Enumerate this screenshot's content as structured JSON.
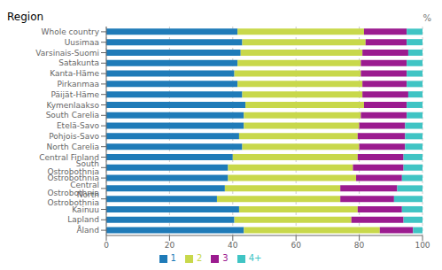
{
  "chart_data": {
    "type": "bar",
    "orientation": "horizontal",
    "stacked": true,
    "title": "Region",
    "xlabel": "%",
    "categories": [
      "Whole country",
      "Uusimaa",
      "Varsinais-Suomi",
      "Satakunta",
      "Kanta-Häme",
      "Pirkanmaa",
      "Päijät-Häme",
      "Kymenlaakso",
      "South Carelia",
      "Etelä-Savo",
      "Pohjois-Savo",
      "North Carelia",
      "Central Finland",
      "South Ostrobothnia",
      "Ostrobothnia",
      "Central Ostrobothnia",
      "North Ostrobothnia",
      "Kainuu",
      "Lapland",
      "Åland"
    ],
    "series": [
      {
        "name": "1",
        "color": "#1F7BB8",
        "values": [
          41.5,
          43.0,
          42.5,
          41.5,
          40.5,
          41.5,
          43.0,
          44.0,
          43.5,
          43.5,
          42.0,
          43.0,
          40.0,
          38.5,
          38.5,
          37.5,
          35.0,
          42.0,
          40.5,
          43.5
        ]
      },
      {
        "name": "2",
        "color": "#C8D84B",
        "values": [
          40.0,
          39.0,
          38.5,
          39.0,
          40.0,
          39.5,
          38.0,
          37.5,
          37.0,
          36.5,
          37.5,
          37.0,
          39.5,
          39.5,
          40.5,
          36.5,
          39.0,
          37.5,
          37.0,
          43.0
        ]
      },
      {
        "name": "3",
        "color": "#9B1B8F",
        "values": [
          13.5,
          13.0,
          14.5,
          14.5,
          14.5,
          14.0,
          14.5,
          13.5,
          14.5,
          14.5,
          15.0,
          14.5,
          14.5,
          16.0,
          14.5,
          18.0,
          17.0,
          14.0,
          16.5,
          10.5
        ]
      },
      {
        "name": "4+",
        "color": "#40C4C4",
        "values": [
          5.0,
          5.0,
          4.5,
          5.0,
          5.0,
          5.0,
          4.5,
          5.0,
          5.0,
          5.5,
          5.5,
          5.5,
          6.0,
          6.0,
          6.5,
          8.0,
          9.0,
          6.5,
          6.0,
          3.0
        ]
      }
    ],
    "xlim": [
      0,
      100
    ],
    "xticks": [
      0,
      20,
      40,
      60,
      80,
      100
    ],
    "grid": true,
    "legend": "bottom"
  }
}
